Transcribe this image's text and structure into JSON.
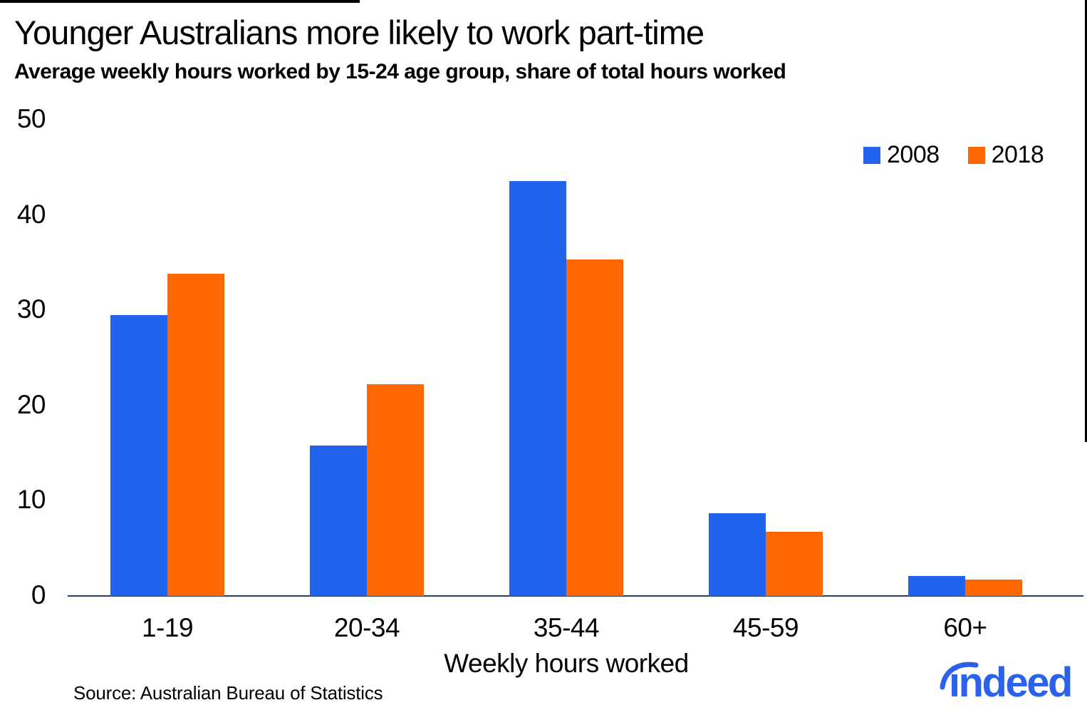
{
  "title": "Younger Australians more likely to work part-time",
  "subtitle": "Average weekly hours worked by 15-24 age group, share of total hours worked",
  "source": "Source: Australian Bureau of Statistics",
  "branding": {
    "logo_text": "indeed",
    "logo_color": "#2A62E9"
  },
  "colors": {
    "background": "#ffffff",
    "text": "#000000",
    "axis_line": "#2C3E64",
    "series_2008": "#2263EE",
    "series_2018": "#FF6702"
  },
  "chart_data": {
    "type": "bar",
    "title": "Younger Australians more likely to work part-time",
    "subtitle": "Average weekly hours worked by 15-24 age group, share of total hours worked",
    "categories": [
      "1-19",
      "20-34",
      "35-44",
      "45-59",
      "60+"
    ],
    "series": [
      {
        "name": "2008",
        "color": "#2263EE",
        "values": [
          29.5,
          15.8,
          43.6,
          8.7,
          2.1
        ]
      },
      {
        "name": "2018",
        "color": "#FF6702",
        "values": [
          33.8,
          22.2,
          35.3,
          6.7,
          1.7
        ]
      }
    ],
    "xlabel": "Weekly hours worked",
    "ylabel": "",
    "ylim": [
      0,
      50
    ],
    "yticks": [
      0,
      10,
      20,
      30,
      40,
      50
    ],
    "grid": false,
    "legend_position": "top-right"
  }
}
